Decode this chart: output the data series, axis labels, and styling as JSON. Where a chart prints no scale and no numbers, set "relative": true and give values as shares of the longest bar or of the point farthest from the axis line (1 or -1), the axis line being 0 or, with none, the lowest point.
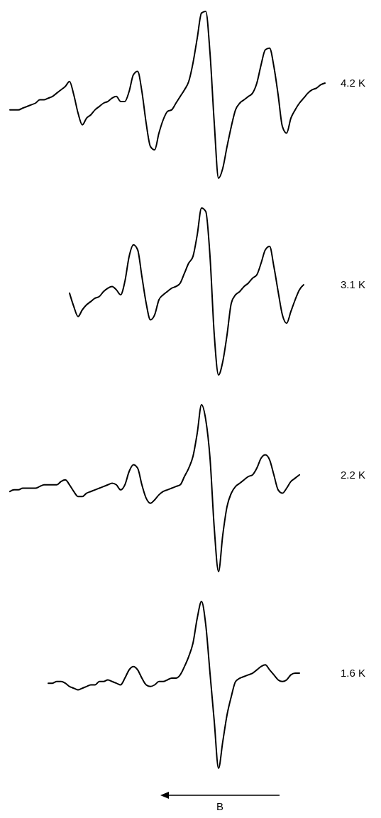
{
  "chart_data": [
    {
      "type": "line",
      "relative": true,
      "tick_labels": false,
      "categories": [
        null,
        null,
        null,
        null,
        null,
        null,
        null,
        null,
        null,
        null,
        null,
        null,
        null,
        null,
        null,
        null,
        null,
        null,
        null,
        null,
        null,
        null,
        null,
        null,
        null,
        null,
        null,
        null,
        null,
        null,
        null,
        null,
        null,
        null,
        null,
        null,
        null,
        null,
        null,
        null,
        null,
        null,
        null,
        null,
        null,
        null,
        null,
        null,
        null,
        null,
        null,
        null,
        null,
        null,
        null,
        null,
        null,
        null,
        null,
        null,
        null,
        null,
        null,
        null,
        null,
        null,
        null,
        null,
        null,
        null,
        null,
        null,
        null,
        null,
        null
      ],
      "series": [
        {
          "name": "4.2 K",
          "color": "#000000",
          "values": [
            0.41,
            0.41,
            0.41,
            0.42,
            0.43,
            0.44,
            0.45,
            0.47,
            0.47,
            0.48,
            0.49,
            0.51,
            0.53,
            0.55,
            0.58,
            0.5,
            0.39,
            0.32,
            0.36,
            0.38,
            0.41,
            0.43,
            0.45,
            0.46,
            0.48,
            0.49,
            0.46,
            0.46,
            0.52,
            0.62,
            0.64,
            0.52,
            0.33,
            0.19,
            0.17,
            0.27,
            0.35,
            0.4,
            0.41,
            0.45,
            0.49,
            0.53,
            0.58,
            0.69,
            0.84,
            0.99,
            1,
            0.75,
            0.33,
            0,
            0.06,
            0.19,
            0.31,
            0.41,
            0.45,
            0.47,
            0.49,
            0.51,
            0.57,
            0.68,
            0.77,
            0.78,
            0.67,
            0.5,
            0.31,
            0.27,
            0.36,
            0.41,
            0.45,
            0.48,
            0.51,
            0.53,
            0.54,
            0.56,
            0.57
          ]
        }
      ]
    },
    {
      "type": "line",
      "relative": true,
      "tick_labels": false,
      "categories": [
        null,
        null,
        null,
        null,
        null,
        null,
        null,
        null,
        null,
        null,
        null,
        null,
        null,
        null,
        null,
        null,
        null,
        null,
        null,
        null,
        null,
        null,
        null,
        null,
        null,
        null,
        null,
        null,
        null,
        null,
        null,
        null,
        null,
        null,
        null,
        null,
        null,
        null,
        null,
        null,
        null,
        null,
        null,
        null,
        null,
        null,
        null,
        null,
        null,
        null,
        null,
        null,
        null,
        null,
        null,
        null,
        null,
        null,
        null,
        null,
        null,
        null,
        null,
        null,
        null,
        null,
        null,
        null,
        null,
        null,
        null,
        null,
        null,
        null,
        null
      ],
      "series": [
        {
          "name": "3.1 K",
          "color": "#000000",
          "values": [
            null,
            null,
            null,
            null,
            null,
            null,
            null,
            null,
            null,
            null,
            null,
            null,
            null,
            null,
            0.49,
            0.41,
            0.35,
            0.39,
            0.42,
            0.44,
            0.46,
            0.47,
            0.5,
            0.52,
            0.53,
            0.51,
            0.48,
            0.56,
            0.71,
            0.78,
            0.75,
            0.59,
            0.43,
            0.33,
            0.36,
            0.45,
            0.48,
            0.5,
            0.52,
            0.53,
            0.55,
            0.61,
            0.67,
            0.71,
            0.84,
            1,
            0.98,
            0.71,
            0.24,
            0,
            0.08,
            0.24,
            0.43,
            0.48,
            0.5,
            0.53,
            0.55,
            0.58,
            0.6,
            0.67,
            0.75,
            0.77,
            0.65,
            0.5,
            0.36,
            0.31,
            0.38,
            0.45,
            0.51,
            0.54,
            null,
            null,
            null,
            null,
            null
          ]
        }
      ]
    },
    {
      "type": "line",
      "relative": true,
      "tick_labels": false,
      "categories": [
        null,
        null,
        null,
        null,
        null,
        null,
        null,
        null,
        null,
        null,
        null,
        null,
        null,
        null,
        null,
        null,
        null,
        null,
        null,
        null,
        null,
        null,
        null,
        null,
        null,
        null,
        null,
        null,
        null,
        null,
        null,
        null,
        null,
        null,
        null,
        null,
        null,
        null,
        null,
        null,
        null,
        null,
        null,
        null,
        null,
        null,
        null,
        null,
        null,
        null,
        null,
        null,
        null,
        null,
        null,
        null,
        null,
        null,
        null,
        null,
        null,
        null,
        null,
        null,
        null,
        null,
        null,
        null,
        null,
        null,
        null,
        null,
        null,
        null,
        null
      ],
      "series": [
        {
          "name": "2.2 K",
          "color": "#000000",
          "values": [
            0.48,
            0.49,
            0.49,
            0.5,
            0.5,
            0.5,
            0.5,
            0.51,
            0.52,
            0.52,
            0.52,
            0.52,
            0.54,
            0.55,
            0.52,
            0.48,
            0.45,
            0.45,
            0.47,
            0.48,
            0.49,
            0.5,
            0.51,
            0.52,
            0.53,
            0.52,
            0.49,
            0.52,
            0.6,
            0.64,
            0.62,
            0.52,
            0.44,
            0.41,
            0.43,
            0.46,
            0.48,
            0.49,
            0.5,
            0.51,
            0.52,
            0.57,
            0.62,
            0.69,
            0.83,
            1,
            0.91,
            0.68,
            0.26,
            0,
            0.22,
            0.39,
            0.47,
            0.51,
            0.53,
            0.55,
            0.57,
            0.58,
            0.62,
            0.68,
            0.7,
            0.67,
            0.58,
            0.49,
            0.47,
            0.5,
            0.54,
            0.56,
            0.58,
            null,
            null,
            null,
            null,
            null,
            null
          ]
        }
      ]
    },
    {
      "type": "line",
      "relative": true,
      "tick_labels": false,
      "xlabel": "B",
      "categories": [
        null,
        null,
        null,
        null,
        null,
        null,
        null,
        null,
        null,
        null,
        null,
        null,
        null,
        null,
        null,
        null,
        null,
        null,
        null,
        null,
        null,
        null,
        null,
        null,
        null,
        null,
        null,
        null,
        null,
        null,
        null,
        null,
        null,
        null,
        null,
        null,
        null,
        null,
        null,
        null,
        null,
        null,
        null,
        null,
        null,
        null,
        null,
        null,
        null,
        null,
        null,
        null,
        null,
        null,
        null,
        null,
        null,
        null,
        null,
        null,
        null,
        null,
        null,
        null,
        null,
        null,
        null,
        null,
        null,
        null,
        null,
        null,
        null,
        null,
        null
      ],
      "series": [
        {
          "name": "1.6 K",
          "color": "#000000",
          "values": [
            null,
            null,
            null,
            null,
            null,
            null,
            null,
            null,
            null,
            0.51,
            0.51,
            0.52,
            0.52,
            0.51,
            0.49,
            0.48,
            0.47,
            0.48,
            0.49,
            0.5,
            0.5,
            0.52,
            0.52,
            0.53,
            0.52,
            0.51,
            0.5,
            0.54,
            0.59,
            0.61,
            0.59,
            0.54,
            0.5,
            0.49,
            0.5,
            0.52,
            0.52,
            0.53,
            0.54,
            0.54,
            0.56,
            0.61,
            0.67,
            0.75,
            0.9,
            1,
            0.86,
            0.57,
            0.28,
            0,
            0.16,
            0.32,
            0.43,
            0.52,
            0.54,
            0.55,
            0.56,
            0.57,
            0.59,
            0.61,
            0.62,
            0.59,
            0.56,
            0.53,
            0.52,
            0.53,
            0.56,
            0.57,
            0.57,
            null,
            null,
            null,
            null,
            null,
            null
          ]
        }
      ]
    }
  ]
}
